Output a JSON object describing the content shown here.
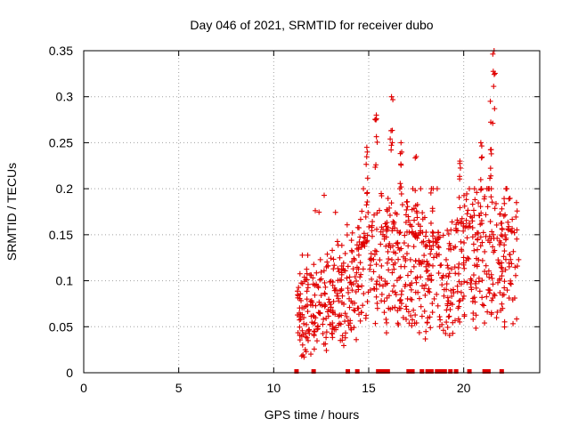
{
  "chart_data": {
    "type": "scatter",
    "title": "Day 046 of 2021, SRMTID for receiver dubo",
    "xlabel": "GPS time / hours",
    "ylabel": "SRMTID / TECUs",
    "xlim": [
      0,
      24
    ],
    "ylim": [
      0,
      0.35
    ],
    "xticks": [
      "0",
      "5",
      "10",
      "15",
      "20"
    ],
    "yticks": [
      "0",
      "0.05",
      "0.1",
      "0.15",
      "0.2",
      "0.25",
      "0.3",
      "0.35"
    ],
    "grid": true,
    "marker": "plus",
    "colors": {
      "series": "#e00000",
      "grid": "#a0a0a0",
      "axis": "#000000"
    },
    "series": [
      {
        "name": "SRMTID",
        "generator": {
          "x_range": [
            11.2,
            22.9
          ],
          "n_points": 900,
          "baseline_by_hour": [
            [
              11,
              0.06
            ],
            [
              12,
              0.07
            ],
            [
              13,
              0.08
            ],
            [
              14,
              0.09
            ],
            [
              15,
              0.11
            ],
            [
              16,
              0.12
            ],
            [
              17,
              0.12
            ],
            [
              18,
              0.11
            ],
            [
              19,
              0.1
            ],
            [
              20,
              0.12
            ],
            [
              21,
              0.13
            ],
            [
              22,
              0.12
            ],
            [
              23,
              0.13
            ]
          ],
          "peaks": [
            [
              14.9,
              0.245
            ],
            [
              15.4,
              0.28
            ],
            [
              16.2,
              0.3
            ],
            [
              16.7,
              0.25
            ],
            [
              17.5,
              0.235
            ],
            [
              18.3,
              0.2
            ],
            [
              19.8,
              0.23
            ],
            [
              20.9,
              0.25
            ],
            [
              21.6,
              0.35
            ],
            [
              21.4,
              0.295
            ]
          ]
        }
      }
    ],
    "gap_markers_x": [
      11.2,
      12.1,
      13.9,
      14.4,
      15.5,
      15.7,
      15.8,
      16.0,
      17.1,
      17.3,
      17.8,
      18.1,
      18.3,
      18.6,
      18.8,
      19.0,
      19.3,
      19.6,
      20.3,
      21.1,
      21.3,
      22.0
    ]
  }
}
